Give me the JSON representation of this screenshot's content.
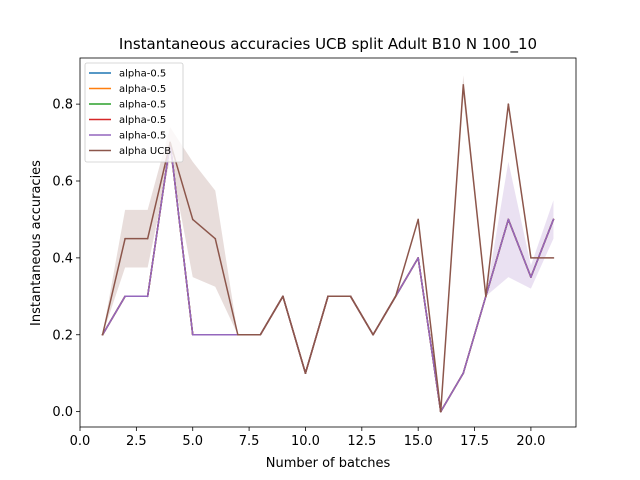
{
  "chart_data": {
    "type": "line",
    "title": "Instantaneous accuracies UCB split Adult B10 N 100_10",
    "xlabel": "Number of batches",
    "ylabel": "Instantaneous accuracies",
    "xlim": [
      0.0,
      22.0
    ],
    "ylim": [
      -0.04,
      0.92
    ],
    "xticks": [
      0.0,
      2.5,
      5.0,
      7.5,
      10.0,
      12.5,
      15.0,
      17.5,
      20.0
    ],
    "xtick_labels": [
      "0.0",
      "2.5",
      "5.0",
      "7.5",
      "10.0",
      "12.5",
      "15.0",
      "17.5",
      "20.0"
    ],
    "yticks": [
      0.0,
      0.2,
      0.4,
      0.6,
      0.8
    ],
    "ytick_labels": [
      "0.0",
      "0.2",
      "0.4",
      "0.6",
      "0.8"
    ],
    "legend_position": "top-left",
    "grid": false,
    "x": [
      1,
      2,
      3,
      4,
      5,
      6,
      7,
      8,
      9,
      10,
      11,
      12,
      13,
      14,
      15,
      16,
      17,
      18,
      19,
      20,
      21
    ],
    "series": [
      {
        "name": "alpha-0.5",
        "color": "#1f77b4",
        "values": [
          0.2,
          0.3,
          0.3,
          0.7,
          0.2,
          0.2,
          0.2,
          0.2,
          0.3,
          0.1,
          0.3,
          0.3,
          0.2,
          0.3,
          0.4,
          0.0,
          0.1,
          0.3,
          0.5,
          0.35,
          0.5
        ]
      },
      {
        "name": "alpha-0.5",
        "color": "#ff7f0e",
        "values": [
          0.2,
          0.3,
          0.3,
          0.7,
          0.2,
          0.2,
          0.2,
          0.2,
          0.3,
          0.1,
          0.3,
          0.3,
          0.2,
          0.3,
          0.4,
          0.0,
          0.1,
          0.3,
          0.5,
          0.35,
          0.5
        ]
      },
      {
        "name": "alpha-0.5",
        "color": "#2ca02c",
        "values": [
          0.2,
          0.3,
          0.3,
          0.7,
          0.2,
          0.2,
          0.2,
          0.2,
          0.3,
          0.1,
          0.3,
          0.3,
          0.2,
          0.3,
          0.4,
          0.0,
          0.1,
          0.3,
          0.5,
          0.35,
          0.5
        ]
      },
      {
        "name": "alpha-0.5",
        "color": "#d62728",
        "values": [
          0.2,
          0.3,
          0.3,
          0.7,
          0.2,
          0.2,
          0.2,
          0.2,
          0.3,
          0.1,
          0.3,
          0.3,
          0.2,
          0.3,
          0.4,
          0.0,
          0.1,
          0.3,
          0.5,
          0.35,
          0.5
        ]
      },
      {
        "name": "alpha-0.5",
        "color": "#9467bd",
        "values": [
          0.2,
          0.3,
          0.3,
          0.7,
          0.2,
          0.2,
          0.2,
          0.2,
          0.3,
          0.1,
          0.3,
          0.3,
          0.2,
          0.3,
          0.4,
          0.0,
          0.1,
          0.3,
          0.5,
          0.35,
          0.5
        ],
        "band_low": [
          0.2,
          0.3,
          0.3,
          0.7,
          0.2,
          0.2,
          0.2,
          0.2,
          0.3,
          0.1,
          0.3,
          0.3,
          0.2,
          0.3,
          0.4,
          0.0,
          0.1,
          0.3,
          0.35,
          0.32,
          0.45
        ],
        "band_high": [
          0.2,
          0.3,
          0.3,
          0.7,
          0.2,
          0.2,
          0.2,
          0.2,
          0.3,
          0.1,
          0.3,
          0.3,
          0.2,
          0.3,
          0.4,
          0.0,
          0.1,
          0.3,
          0.65,
          0.38,
          0.55
        ]
      },
      {
        "name": "alpha UCB",
        "color": "#8c564b",
        "values": [
          0.2,
          0.45,
          0.45,
          0.7,
          0.5,
          0.45,
          0.2,
          0.2,
          0.3,
          0.1,
          0.3,
          0.3,
          0.2,
          0.3,
          0.5,
          0.0,
          0.85,
          0.3,
          0.8,
          0.4,
          0.4
        ],
        "band_low": [
          0.2,
          0.375,
          0.375,
          0.66,
          0.35,
          0.325,
          0.2,
          0.2,
          0.3,
          0.1,
          0.3,
          0.3,
          0.2,
          0.3,
          0.5,
          0.0,
          0.82,
          0.3,
          0.8,
          0.4,
          0.4
        ],
        "band_high": [
          0.2,
          0.525,
          0.525,
          0.74,
          0.65,
          0.575,
          0.2,
          0.2,
          0.3,
          0.1,
          0.3,
          0.3,
          0.2,
          0.3,
          0.5,
          0.0,
          0.875,
          0.3,
          0.8,
          0.4,
          0.4
        ]
      }
    ]
  }
}
